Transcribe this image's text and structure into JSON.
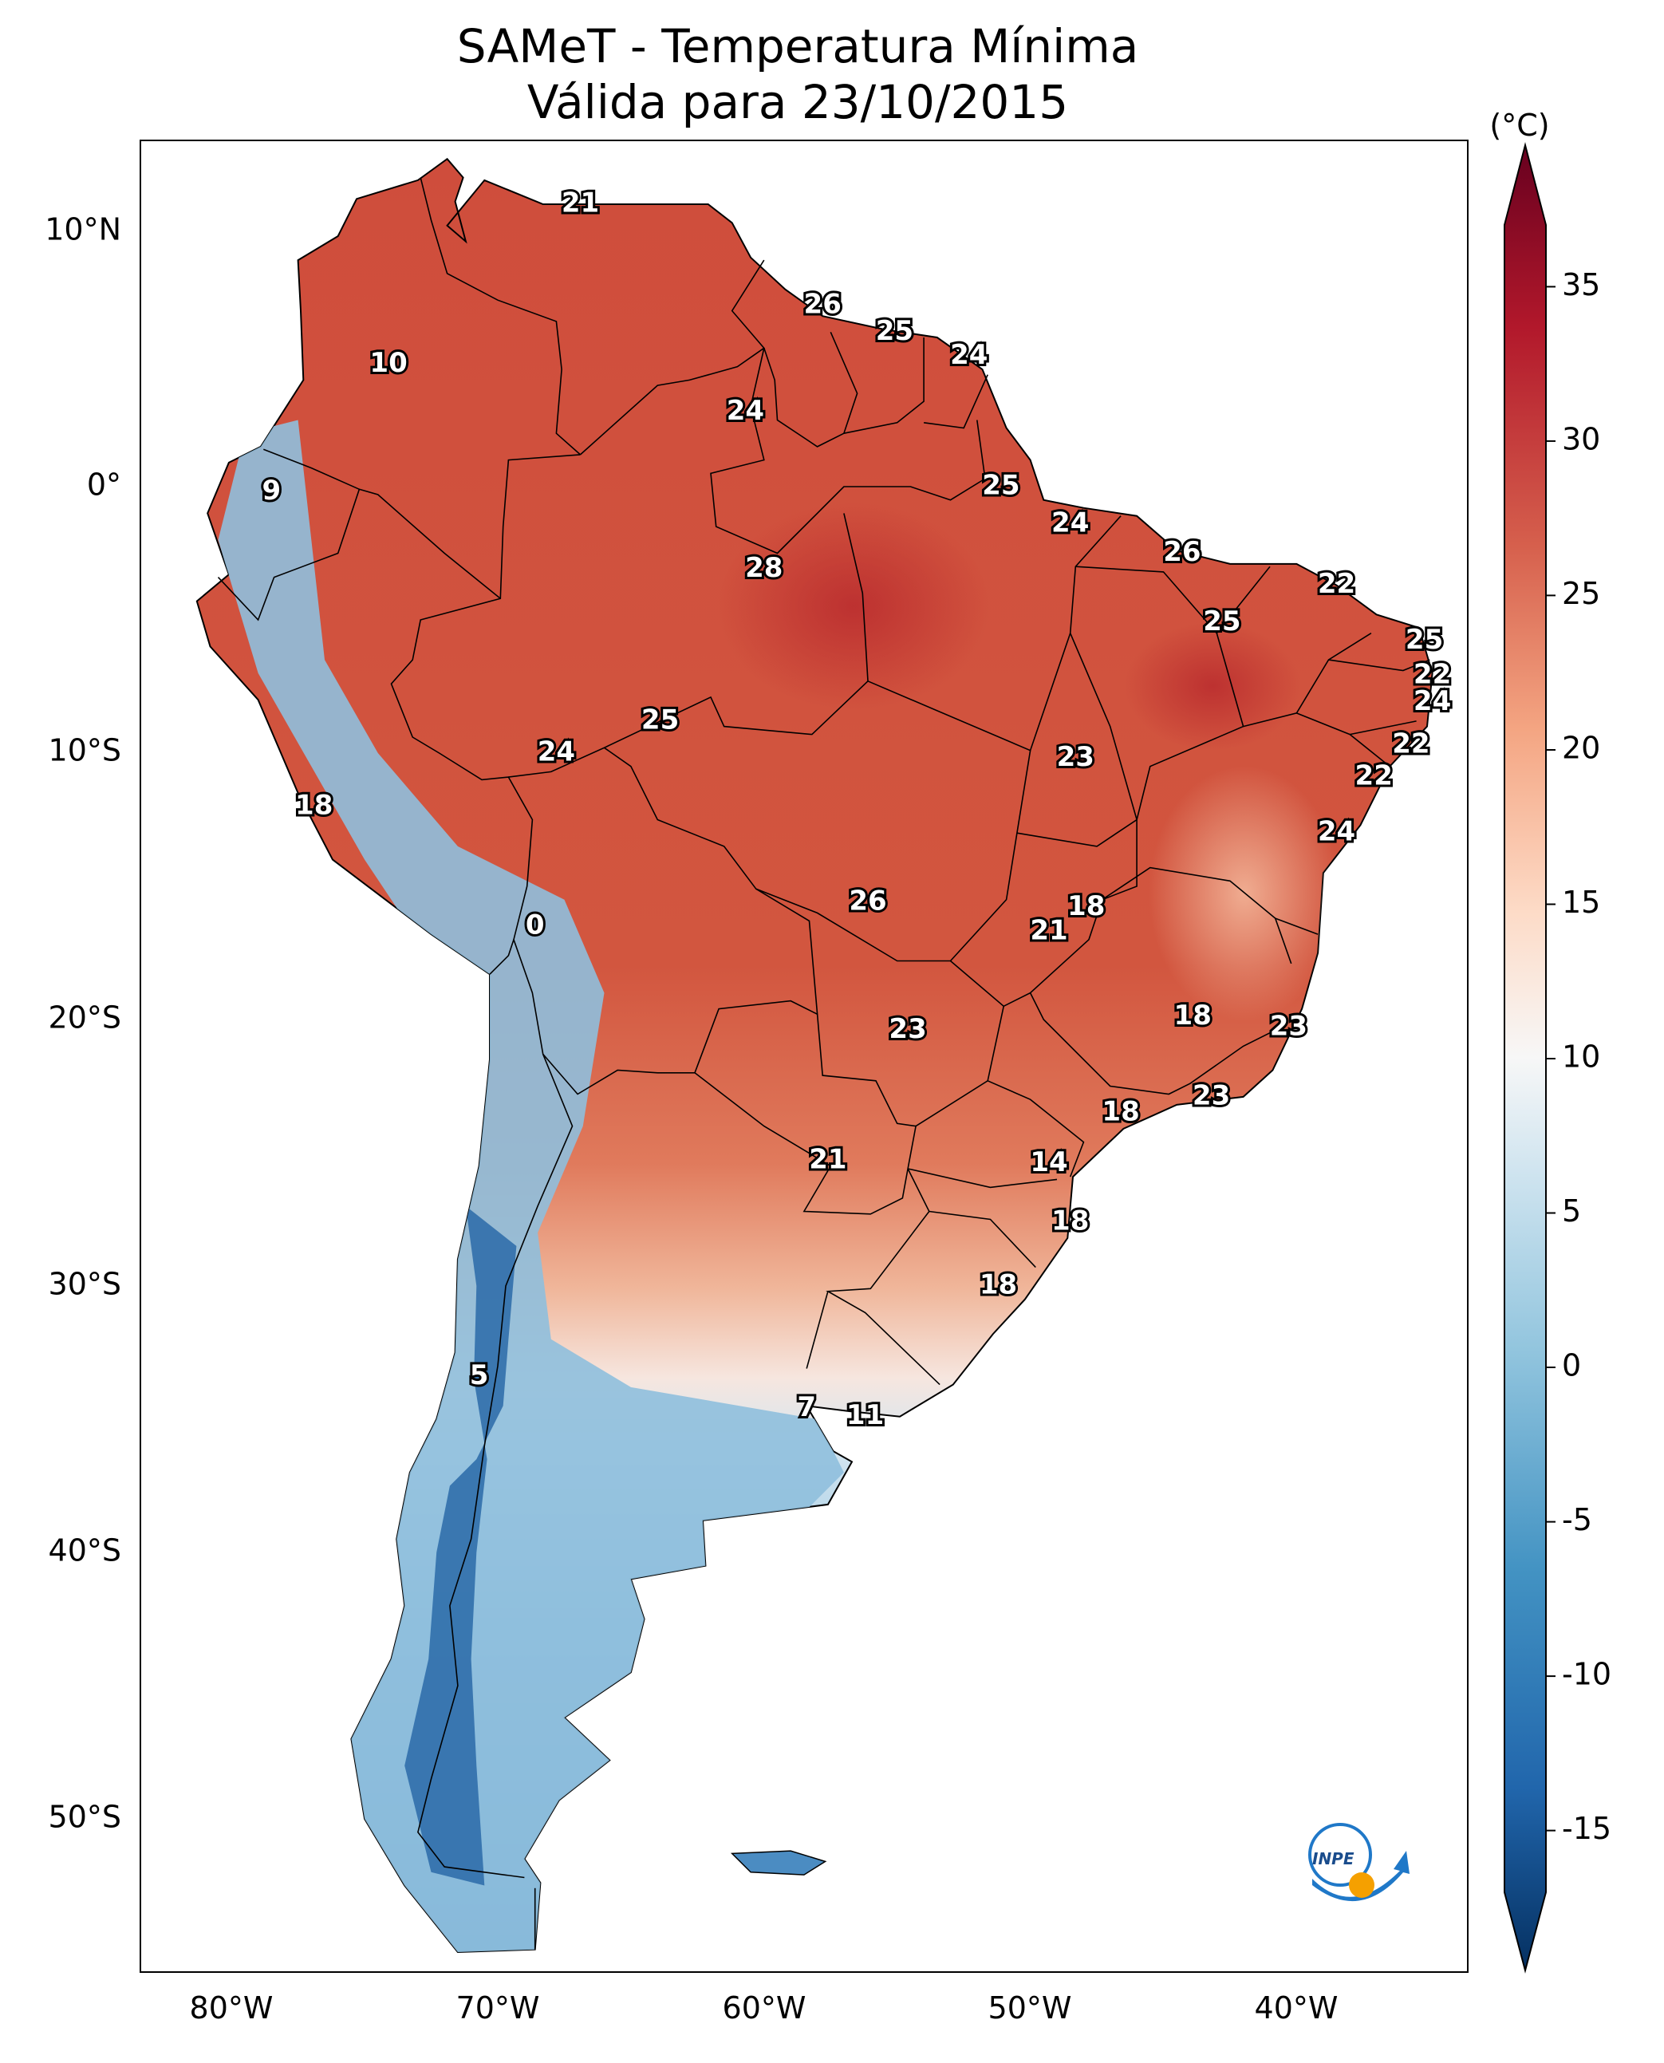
{
  "title": {
    "line1": "SAMeT - Temperatura Mínima",
    "line2": "Válida para 23/10/2015"
  },
  "colorbar": {
    "unit_label": "(°C)",
    "ticks": [
      "35",
      "30",
      "25",
      "20",
      "15",
      "10",
      "5",
      "0",
      "-5",
      "-10",
      "-15"
    ]
  },
  "axes": {
    "lat_labels": [
      "10°N",
      "0°",
      "10°S",
      "20°S",
      "30°S",
      "40°S",
      "50°S"
    ],
    "lon_labels": [
      "80°W",
      "70°W",
      "60°W",
      "50°W",
      "40°W"
    ]
  },
  "logo": {
    "text": "INPE",
    "colors": {
      "blue": "#1f78c8",
      "orange": "#f5a000"
    }
  },
  "colors": {
    "warm": "#c8413a",
    "hot": "#b3282e",
    "mild": "#f2a585",
    "neutral": "#f5f0ee",
    "cool": "#9ec8e2",
    "cold": "#2f6fad"
  },
  "station_values": [
    {
      "value": "21",
      "lon": -66.9,
      "lat": 10.6
    },
    {
      "value": "26",
      "lon": -57.8,
      "lat": 6.8
    },
    {
      "value": "25",
      "lon": -55.1,
      "lat": 5.8
    },
    {
      "value": "24",
      "lon": -52.3,
      "lat": 4.9
    },
    {
      "value": "10",
      "lon": -74.1,
      "lat": 4.6
    },
    {
      "value": "24",
      "lon": -60.7,
      "lat": 2.8
    },
    {
      "value": "9",
      "lon": -78.5,
      "lat": -0.2
    },
    {
      "value": "25",
      "lon": -51.1,
      "lat": 0.0
    },
    {
      "value": "24",
      "lon": -48.5,
      "lat": -1.4
    },
    {
      "value": "26",
      "lon": -44.3,
      "lat": -2.5
    },
    {
      "value": "28",
      "lon": -60.0,
      "lat": -3.1
    },
    {
      "value": "22",
      "lon": -38.5,
      "lat": -3.7
    },
    {
      "value": "25",
      "lon": -42.8,
      "lat": -5.1
    },
    {
      "value": "25",
      "lon": -35.2,
      "lat": -5.8
    },
    {
      "value": "22",
      "lon": -34.9,
      "lat": -7.1
    },
    {
      "value": "24",
      "lon": -34.9,
      "lat": -8.1
    },
    {
      "value": "25",
      "lon": -63.9,
      "lat": -8.8
    },
    {
      "value": "22",
      "lon": -35.7,
      "lat": -9.7
    },
    {
      "value": "24",
      "lon": -67.8,
      "lat": -10.0
    },
    {
      "value": "23",
      "lon": -48.3,
      "lat": -10.2
    },
    {
      "value": "22",
      "lon": -37.1,
      "lat": -10.9
    },
    {
      "value": "18",
      "lon": -76.9,
      "lat": -12.0
    },
    {
      "value": "24",
      "lon": -38.5,
      "lat": -13.0
    },
    {
      "value": "26",
      "lon": -56.1,
      "lat": -15.6
    },
    {
      "value": "18",
      "lon": -47.9,
      "lat": -15.8
    },
    {
      "value": "21",
      "lon": -49.3,
      "lat": -16.7
    },
    {
      "value": "0",
      "lon": -68.6,
      "lat": -16.5
    },
    {
      "value": "18",
      "lon": -43.9,
      "lat": -19.9
    },
    {
      "value": "23",
      "lon": -54.6,
      "lat": -20.4
    },
    {
      "value": "23",
      "lon": -40.3,
      "lat": -20.3
    },
    {
      "value": "23",
      "lon": -43.2,
      "lat": -22.9
    },
    {
      "value": "18",
      "lon": -46.6,
      "lat": -23.5
    },
    {
      "value": "21",
      "lon": -57.6,
      "lat": -25.3
    },
    {
      "value": "14",
      "lon": -49.3,
      "lat": -25.4
    },
    {
      "value": "18",
      "lon": -48.5,
      "lat": -27.6
    },
    {
      "value": "18",
      "lon": -51.2,
      "lat": -30.0
    },
    {
      "value": "5",
      "lon": -70.7,
      "lat": -33.4
    },
    {
      "value": "7",
      "lon": -58.4,
      "lat": -34.6
    },
    {
      "value": "11",
      "lon": -56.2,
      "lat": -34.9
    }
  ]
}
